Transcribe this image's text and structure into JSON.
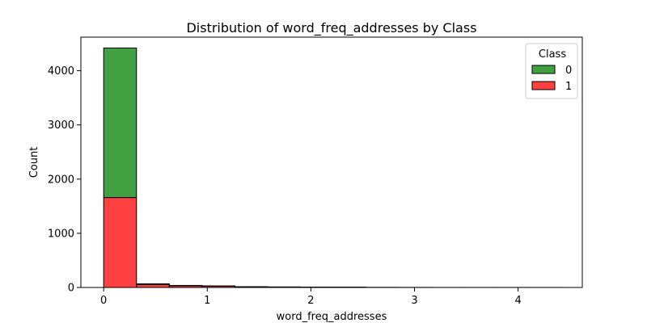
{
  "chart_data": {
    "type": "bar",
    "subtype": "stacked-histogram",
    "title": "Distribution of word_freq_addresses by Class",
    "xlabel": "word_freq_addresses",
    "ylabel": "Count",
    "xlim": [
      -0.22,
      4.62
    ],
    "ylim": [
      0,
      4620
    ],
    "xticks": [
      0,
      1,
      2,
      3,
      4
    ],
    "yticks": [
      0,
      1000,
      2000,
      3000,
      4000
    ],
    "grid": false,
    "legend": {
      "title": "Class",
      "position": "top-right"
    },
    "bin_edges": [
      0.0,
      0.3167,
      0.6333,
      0.95,
      1.2667,
      1.5833,
      1.9,
      2.2167,
      2.5333,
      2.85,
      3.1667,
      3.4833,
      3.8,
      4.1167,
      4.4333
    ],
    "series": [
      {
        "name": "1",
        "color": "#ff4040",
        "values": [
          1660,
          55,
          30,
          25,
          12,
          8,
          6,
          5,
          3,
          2,
          1,
          1,
          1,
          1
        ]
      },
      {
        "name": "0",
        "color": "#42a042",
        "values": [
          2760,
          12,
          8,
          4,
          2,
          2,
          1,
          1,
          0,
          0,
          0,
          0,
          0,
          0
        ]
      }
    ]
  }
}
